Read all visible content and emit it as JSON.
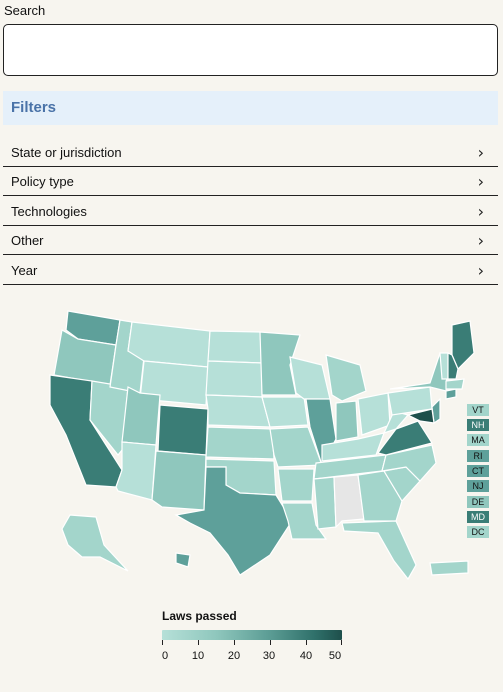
{
  "search": {
    "label": "Search",
    "value": "",
    "placeholder": ""
  },
  "filters": {
    "title": "Filters",
    "items": [
      {
        "label": "State or jurisdiction"
      },
      {
        "label": "Policy type"
      },
      {
        "label": "Technologies"
      },
      {
        "label": "Other"
      },
      {
        "label": "Year"
      }
    ]
  },
  "map": {
    "small_states": [
      "VT",
      "NH",
      "MA",
      "RI",
      "CT",
      "NJ",
      "DE",
      "MD",
      "DC"
    ]
  },
  "legend": {
    "title": "Laws passed",
    "ticks": [
      "0",
      "10",
      "20",
      "30",
      "40",
      "50"
    ],
    "colors": [
      "#b6e0d8",
      "#8fc7bd",
      "#5b9c94",
      "#2f706a",
      "#1e4f4b"
    ]
  }
}
